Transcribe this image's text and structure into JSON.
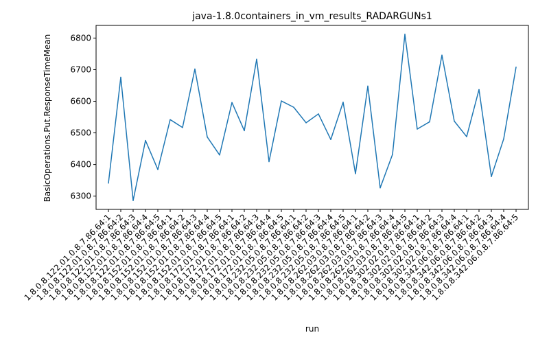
{
  "chart_data": {
    "type": "line",
    "title": "java-1.8.0containers_in_vm_results_RADARGUNs1",
    "xlabel": "run",
    "ylabel": "BasicOperations.Put.ResponseTimeMean",
    "categories": [
      "1.8.0.8.122.01.0.8.7.86.64:1",
      "1.8.0.8.122.01.0.8.7.86.64:2",
      "1.8.0.8.122.01.0.8.7.86.64:3",
      "1.8.0.8.122.01.0.8.7.86.64:4",
      "1.8.0.8.122.01.0.8.7.86.64:5",
      "1.8.0.8.152.01.0.8.7.86.64:1",
      "1.8.0.8.152.01.0.8.7.86.64:2",
      "1.8.0.8.152.01.0.8.7.86.64:3",
      "1.8.0.8.152.01.0.8.7.86.64:4",
      "1.8.0.8.152.01.0.8.7.86.64:5",
      "1.8.0.8.172.01.0.8.7.86.64:1",
      "1.8.0.8.172.01.0.8.7.86.64:2",
      "1.8.0.8.172.01.0.8.7.86.64:3",
      "1.8.0.8.172.01.0.8.7.86.64:4",
      "1.8.0.8.172.01.0.8.7.86.64:5",
      "1.8.0.8.232.05.0.8.7.86.64:1",
      "1.8.0.8.232.05.0.8.7.86.64:2",
      "1.8.0.8.232.05.0.8.7.86.64:3",
      "1.8.0.8.232.05.0.8.7.86.64:4",
      "1.8.0.8.232.05.0.8.7.86.64:5",
      "1.8.0.8.262.03.0.8.7.86.64:1",
      "1.8.0.8.262.03.0.8.7.86.64:2",
      "1.8.0.8.262.03.0.8.7.86.64:3",
      "1.8.0.8.262.03.0.8.7.86.64:4",
      "1.8.0.8.262.03.0.8.7.86.64:5",
      "1.8.0.8.302.02.0.8.7.86.64:1",
      "1.8.0.8.302.02.0.8.7.86.64:2",
      "1.8.0.8.302.02.0.8.7.86.64:3",
      "1.8.0.8.302.02.0.8.7.86.64:4",
      "1.8.0.8.342.06.0.8.7.86.64:1",
      "1.8.0.8.342.06.0.8.7.86.64:2",
      "1.8.0.8.342.06.0.8.7.86.64:3",
      "1.8.0.8.342.06.0.8.7.86.64:4",
      "1.8.0.8.342.06.0.8.7.86.64:5"
    ],
    "values": [
      6341,
      6676,
      6286,
      6476,
      6384,
      6542,
      6517,
      6702,
      6487,
      6430,
      6596,
      6507,
      6733,
      6409,
      6601,
      6581,
      6532,
      6560,
      6479,
      6597,
      6371,
      6648,
      6326,
      6432,
      6812,
      6512,
      6535,
      6746,
      6537,
      6488,
      6637,
      6362,
      6481,
      6708
    ],
    "ylim": [
      6258,
      6840
    ],
    "yticks": [
      6300,
      6400,
      6500,
      6600,
      6700,
      6800
    ],
    "line_color": "#1f77b4",
    "grid": false,
    "legend": false
  }
}
